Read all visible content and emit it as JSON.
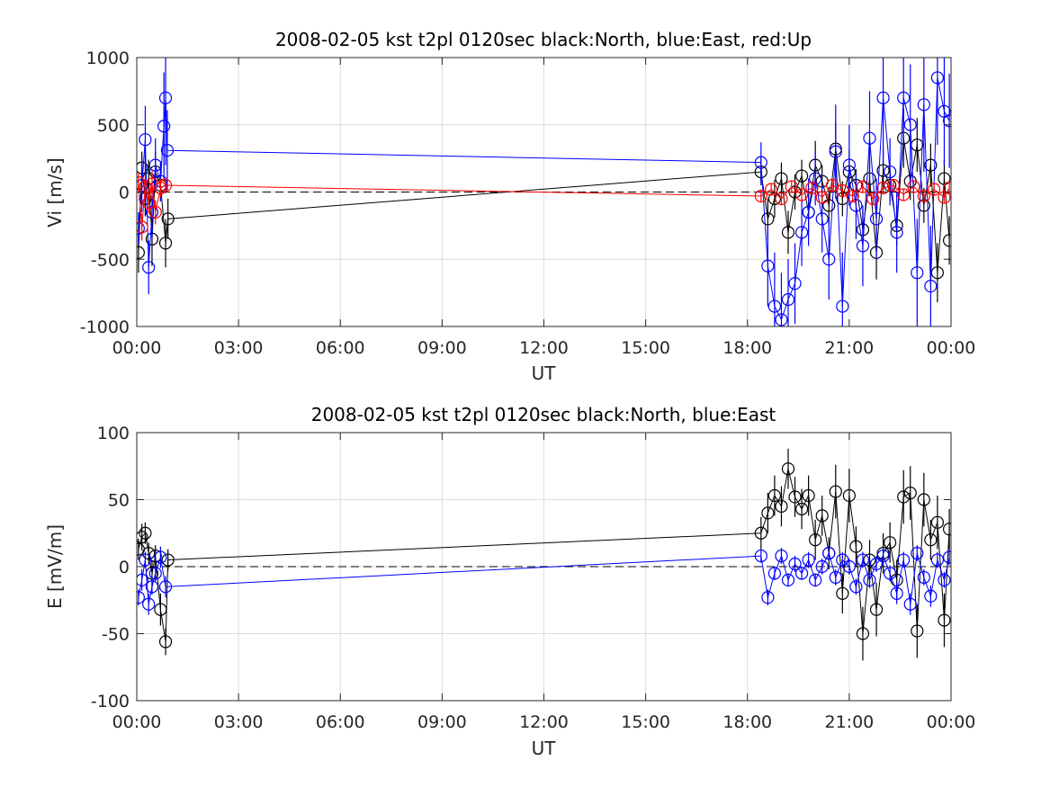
{
  "chart_data": [
    {
      "type": "scatter",
      "title": "2008-02-05 kst t2pl 0120sec black:North, blue:East, red:Up",
      "xlabel": "UT",
      "ylabel": "Vi [m/s]",
      "xlim": [
        0,
        24
      ],
      "ylim": [
        -1000,
        1000
      ],
      "xticks": [
        0,
        3,
        6,
        9,
        12,
        15,
        18,
        21,
        24
      ],
      "xtick_labels": [
        "00:00",
        "03:00",
        "06:00",
        "09:00",
        "12:00",
        "15:00",
        "18:00",
        "21:00",
        "00:00"
      ],
      "yticks": [
        -1000,
        -500,
        0,
        500,
        1000
      ],
      "ytick_labels": [
        "-1000",
        "-500",
        "0",
        "500",
        "1000"
      ],
      "grid": true,
      "zero_line": "dashed",
      "colors": {
        "North": "#000000",
        "East": "#0000ff",
        "Up": "#ff0000"
      },
      "series": [
        {
          "name": "North",
          "color": "#000000",
          "x": [
            0.05,
            0.15,
            0.25,
            0.35,
            0.45,
            0.55,
            0.7,
            0.85,
            0.92,
            18.4,
            18.6,
            18.8,
            19.0,
            19.2,
            19.4,
            19.6,
            19.8,
            20.0,
            20.2,
            20.4,
            20.6,
            20.8,
            21.0,
            21.2,
            21.4,
            21.6,
            21.8,
            22.0,
            22.2,
            22.4,
            22.6,
            22.8,
            23.0,
            23.2,
            23.4,
            23.6,
            23.8,
            23.95
          ],
          "y": [
            -450,
            180,
            -50,
            100,
            -350,
            150,
            50,
            -380,
            -200,
            150,
            -200,
            -50,
            100,
            -300,
            0,
            120,
            -150,
            200,
            80,
            -100,
            320,
            -50,
            150,
            50,
            -280,
            100,
            -450,
            160,
            50,
            -250,
            400,
            80,
            350,
            -100,
            200,
            -600,
            100,
            -360
          ],
          "errors": [
            150,
            120,
            130,
            140,
            200,
            150,
            120,
            180,
            150,
            100,
            150,
            140,
            120,
            160,
            130,
            120,
            150,
            180,
            120,
            140,
            200,
            130,
            160,
            120,
            150,
            130,
            200,
            160,
            120,
            150,
            220,
            140,
            200,
            130,
            160,
            220,
            140,
            180
          ]
        },
        {
          "name": "East",
          "color": "#0000ff",
          "x": [
            0.05,
            0.15,
            0.25,
            0.35,
            0.45,
            0.55,
            0.7,
            0.8,
            0.85,
            0.9,
            18.4,
            18.6,
            18.8,
            19.0,
            19.2,
            19.4,
            19.6,
            19.8,
            20.0,
            20.2,
            20.4,
            20.6,
            20.8,
            21.0,
            21.2,
            21.4,
            21.6,
            21.8,
            22.0,
            22.2,
            22.4,
            22.6,
            22.8,
            23.0,
            23.2,
            23.4,
            23.6,
            23.8,
            23.95
          ],
          "y": [
            -270,
            50,
            390,
            -560,
            -150,
            200,
            80,
            490,
            700,
            310,
            220,
            -550,
            -850,
            -950,
            -800,
            -680,
            -300,
            -150,
            100,
            -200,
            -500,
            300,
            -850,
            200,
            -100,
            -400,
            400,
            -200,
            700,
            150,
            -300,
            700,
            500,
            -600,
            650,
            -700,
            850,
            600,
            530
          ],
          "errors": [
            120,
            200,
            250,
            200,
            180,
            200,
            150,
            400,
            500,
            300,
            150,
            300,
            400,
            350,
            300,
            300,
            250,
            250,
            200,
            250,
            300,
            350,
            400,
            300,
            250,
            300,
            350,
            300,
            500,
            250,
            300,
            500,
            450,
            400,
            500,
            450,
            500,
            400,
            350
          ]
        },
        {
          "name": "Up",
          "color": "#ff0000",
          "x": [
            0.05,
            0.15,
            0.25,
            0.35,
            0.45,
            0.55,
            0.7,
            0.85,
            18.4,
            18.7,
            19.0,
            19.3,
            19.6,
            19.9,
            20.2,
            20.5,
            20.8,
            21.1,
            21.4,
            21.7,
            22.0,
            22.3,
            22.6,
            22.9,
            23.2,
            23.5,
            23.8,
            23.95
          ],
          "y": [
            70,
            -260,
            40,
            -80,
            60,
            -150,
            30,
            50,
            -30,
            20,
            -50,
            40,
            -20,
            30,
            -40,
            50,
            10,
            -30,
            40,
            -50,
            30,
            50,
            -20,
            40,
            -30,
            20,
            -40,
            30
          ],
          "errors": [
            80,
            100,
            90,
            80,
            100,
            90,
            70,
            60,
            40,
            40,
            40,
            40,
            40,
            40,
            40,
            40,
            40,
            40,
            40,
            40,
            40,
            40,
            40,
            40,
            40,
            40,
            40,
            40
          ]
        }
      ]
    },
    {
      "type": "scatter",
      "title": "2008-02-05 kst t2pl 0120sec black:North, blue:East",
      "xlabel": "UT",
      "ylabel": "E [mV/m]",
      "xlim": [
        0,
        24
      ],
      "ylim": [
        -100,
        100
      ],
      "xticks": [
        0,
        3,
        6,
        9,
        12,
        15,
        18,
        21,
        24
      ],
      "xtick_labels": [
        "00:00",
        "03:00",
        "06:00",
        "09:00",
        "12:00",
        "15:00",
        "18:00",
        "21:00",
        "00:00"
      ],
      "yticks": [
        -100,
        -50,
        0,
        50,
        100
      ],
      "ytick_labels": [
        "-100",
        "-50",
        "0",
        "50",
        "100"
      ],
      "grid": true,
      "zero_line": "dashed",
      "colors": {
        "North": "#000000",
        "East": "#0000ff"
      },
      "series": [
        {
          "name": "North",
          "color": "#000000",
          "x": [
            0.05,
            0.15,
            0.25,
            0.35,
            0.45,
            0.55,
            0.7,
            0.85,
            0.92,
            18.4,
            18.6,
            18.8,
            19.0,
            19.2,
            19.4,
            19.6,
            19.8,
            20.0,
            20.2,
            20.4,
            20.6,
            20.8,
            21.0,
            21.2,
            21.4,
            21.6,
            21.8,
            22.0,
            22.2,
            22.4,
            22.6,
            22.8,
            23.0,
            23.2,
            23.4,
            23.6,
            23.8,
            23.95
          ],
          "y": [
            13,
            22,
            25,
            10,
            -5,
            8,
            -32,
            -56,
            5,
            25,
            40,
            53,
            45,
            73,
            52,
            43,
            53,
            20,
            38,
            10,
            56,
            -20,
            53,
            15,
            -50,
            5,
            -32,
            10,
            18,
            -10,
            52,
            55,
            -48,
            50,
            20,
            33,
            -40,
            28
          ],
          "errors": [
            8,
            10,
            8,
            8,
            10,
            8,
            12,
            10,
            8,
            12,
            15,
            15,
            15,
            15,
            15,
            15,
            15,
            15,
            15,
            12,
            20,
            15,
            20,
            15,
            20,
            15,
            20,
            15,
            15,
            15,
            20,
            20,
            20,
            20,
            15,
            20,
            20,
            15
          ]
        },
        {
          "name": "East",
          "color": "#0000ff",
          "x": [
            0.05,
            0.15,
            0.25,
            0.35,
            0.45,
            0.55,
            0.7,
            0.85,
            18.4,
            18.6,
            18.8,
            19.0,
            19.2,
            19.4,
            19.6,
            19.8,
            20.0,
            20.2,
            20.4,
            20.6,
            20.8,
            21.0,
            21.2,
            21.4,
            21.6,
            21.8,
            22.0,
            22.2,
            22.4,
            22.6,
            22.8,
            23.0,
            23.2,
            23.4,
            23.6,
            23.8,
            23.95
          ],
          "y": [
            -23,
            -10,
            5,
            -28,
            -15,
            -5,
            7,
            -15,
            8,
            -23,
            -5,
            8,
            -10,
            2,
            -5,
            5,
            -10,
            0,
            10,
            -8,
            5,
            0,
            -15,
            5,
            -10,
            2,
            8,
            -5,
            -20,
            5,
            -28,
            10,
            -8,
            -22,
            5,
            -10,
            7
          ],
          "errors": [
            6,
            8,
            6,
            8,
            6,
            6,
            8,
            8,
            5,
            6,
            5,
            6,
            5,
            6,
            5,
            6,
            5,
            6,
            5,
            6,
            6,
            6,
            6,
            6,
            6,
            6,
            6,
            6,
            8,
            6,
            8,
            6,
            6,
            8,
            6,
            6,
            6
          ]
        }
      ]
    }
  ]
}
